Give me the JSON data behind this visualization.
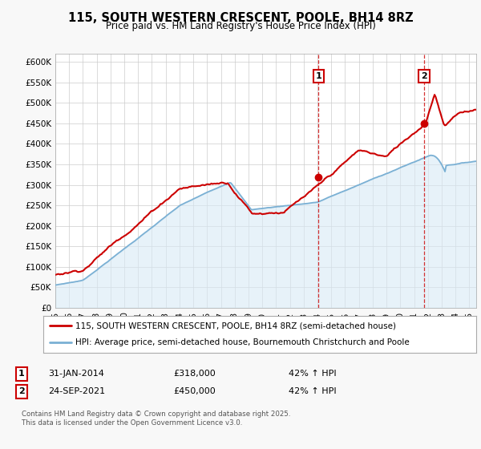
{
  "title": "115, SOUTH WESTERN CRESCENT, POOLE, BH14 8RZ",
  "subtitle": "Price paid vs. HM Land Registry's House Price Index (HPI)",
  "ylabel_ticks": [
    "£0",
    "£50K",
    "£100K",
    "£150K",
    "£200K",
    "£250K",
    "£300K",
    "£350K",
    "£400K",
    "£450K",
    "£500K",
    "£550K",
    "£600K"
  ],
  "ytick_values": [
    0,
    50000,
    100000,
    150000,
    200000,
    250000,
    300000,
    350000,
    400000,
    450000,
    500000,
    550000,
    600000
  ],
  "ylim": [
    0,
    620000
  ],
  "xlim_start": 1995.0,
  "xlim_end": 2025.5,
  "sale1_date": 2014.08,
  "sale1_price": 318000,
  "sale2_date": 2021.73,
  "sale2_price": 450000,
  "property_color": "#cc0000",
  "hpi_color": "#7ab0d4",
  "hpi_fill_color": "#d8eaf5",
  "vline_color": "#cc0000",
  "grid_color": "#cccccc",
  "bg_color": "#f8f8f8",
  "legend_label1": "115, SOUTH WESTERN CRESCENT, POOLE, BH14 8RZ (semi-detached house)",
  "legend_label2": "HPI: Average price, semi-detached house, Bournemouth Christchurch and Poole",
  "table_row1": [
    "1",
    "31-JAN-2014",
    "£318,000",
    "42% ↑ HPI"
  ],
  "table_row2": [
    "2",
    "24-SEP-2021",
    "£450,000",
    "42% ↑ HPI"
  ],
  "footer": "Contains HM Land Registry data © Crown copyright and database right 2025.\nThis data is licensed under the Open Government Licence v3.0.",
  "xtick_labels": [
    "95",
    "96",
    "97",
    "98",
    "99",
    "00",
    "01",
    "02",
    "03",
    "04",
    "05",
    "06",
    "07",
    "08",
    "09",
    "10",
    "11",
    "12",
    "13",
    "14",
    "15",
    "16",
    "17",
    "18",
    "19",
    "20",
    "21",
    "22",
    "23",
    "24",
    "25"
  ],
  "xticks": [
    1995,
    1996,
    1997,
    1998,
    1999,
    2000,
    2001,
    2002,
    2003,
    2004,
    2005,
    2006,
    2007,
    2008,
    2009,
    2010,
    2011,
    2012,
    2013,
    2014,
    2015,
    2016,
    2017,
    2018,
    2019,
    2020,
    2021,
    2022,
    2023,
    2024,
    2025
  ]
}
